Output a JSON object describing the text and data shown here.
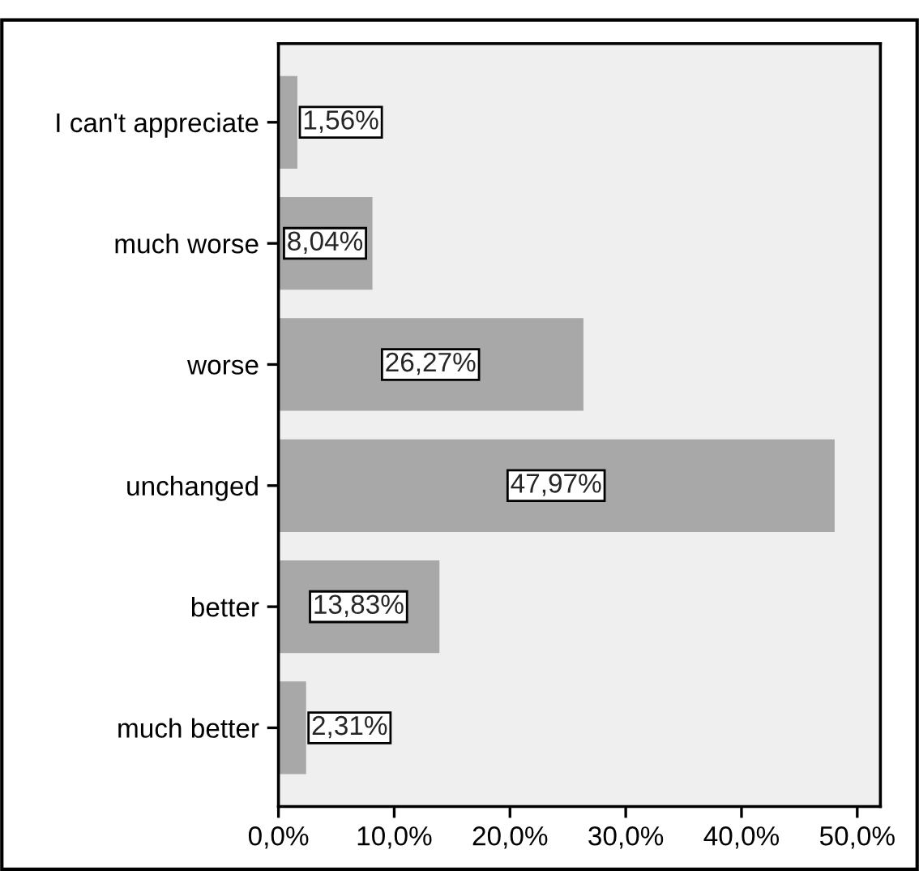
{
  "chart_data": {
    "type": "bar",
    "orientation": "horizontal",
    "categories": [
      "I can't appreciate",
      "much worse",
      "worse",
      "unchanged",
      "better",
      "much better"
    ],
    "values": [
      1.56,
      8.04,
      26.27,
      47.97,
      13.83,
      2.31
    ],
    "value_labels": [
      "1,56%",
      "8,04%",
      "26,27%",
      "47,97%",
      "13,83%",
      "2,31%"
    ],
    "color": "#a8a8a8",
    "xlim": [
      0,
      52
    ],
    "xticks": [
      {
        "value": 0,
        "label": "0,0%"
      },
      {
        "value": 10,
        "label": "10,0%"
      },
      {
        "value": 20,
        "label": "20,0%"
      },
      {
        "value": 30,
        "label": "30,0%"
      },
      {
        "value": 40,
        "label": "40,0%"
      },
      {
        "value": 50,
        "label": "50,0%"
      }
    ],
    "grid": false
  }
}
